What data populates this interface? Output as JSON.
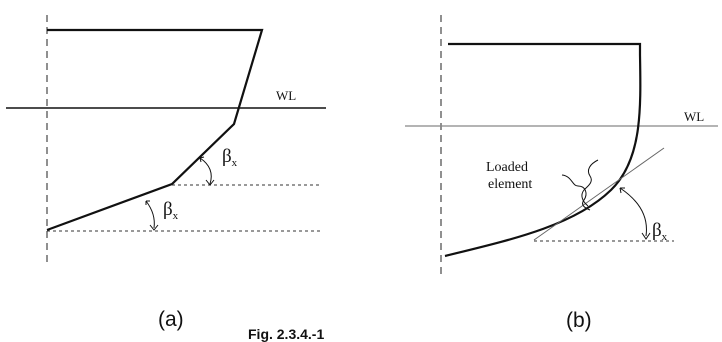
{
  "panel_a": {
    "waterline_label": "WL",
    "angle_label_1": "β",
    "angle_sub_1": "x",
    "angle_label_2": "β",
    "angle_sub_2": "x",
    "caption": "(a)"
  },
  "panel_b": {
    "waterline_label": "WL",
    "element_label_line1": "Loaded",
    "element_label_line2": "element",
    "angle_label": "β",
    "angle_sub": "x",
    "caption": "(b)"
  },
  "figure_caption": "Fig. 2.3.4.-1"
}
